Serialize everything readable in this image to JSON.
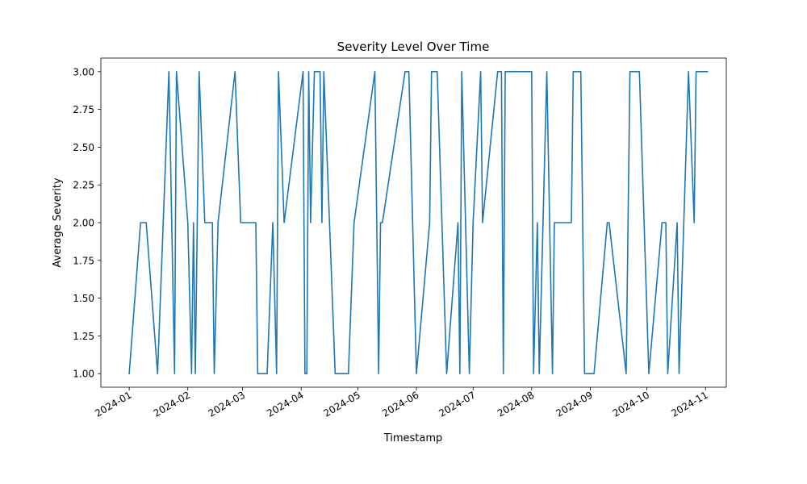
{
  "chart_data": {
    "type": "line",
    "title": "Severity Level Over Time",
    "xlabel": "Timestamp",
    "ylabel": "Average Severity",
    "ylim": [
      0.91,
      3.09
    ],
    "xlim": [
      "2023-12-17",
      "2024-11-12"
    ],
    "x_ticks": [
      "2024-01",
      "2024-02",
      "2024-03",
      "2024-04",
      "2024-05",
      "2024-06",
      "2024-07",
      "2024-08",
      "2024-09",
      "2024-10",
      "2024-11"
    ],
    "y_ticks": [
      "1.00",
      "1.25",
      "1.50",
      "1.75",
      "2.00",
      "2.25",
      "2.50",
      "2.75",
      "3.00"
    ],
    "grid": false,
    "series": [
      {
        "color": "#1f77b4",
        "points": [
          [
            "2024-01-01",
            1
          ],
          [
            "2024-01-07",
            2
          ],
          [
            "2024-01-10",
            2
          ],
          [
            "2024-01-16",
            1
          ],
          [
            "2024-01-22",
            3
          ],
          [
            "2024-01-25",
            1
          ],
          [
            "2024-01-26",
            3
          ],
          [
            "2024-02-01",
            2
          ],
          [
            "2024-02-03",
            1
          ],
          [
            "2024-02-04",
            2
          ],
          [
            "2024-02-05",
            1
          ],
          [
            "2024-02-07",
            3
          ],
          [
            "2024-02-10",
            2
          ],
          [
            "2024-02-14",
            2
          ],
          [
            "2024-02-15",
            1
          ],
          [
            "2024-02-17",
            2
          ],
          [
            "2024-02-26",
            3
          ],
          [
            "2024-02-29",
            2
          ],
          [
            "2024-03-08",
            2
          ],
          [
            "2024-03-09",
            1
          ],
          [
            "2024-03-14",
            1
          ],
          [
            "2024-03-17",
            2
          ],
          [
            "2024-03-19",
            1
          ],
          [
            "2024-03-20",
            3
          ],
          [
            "2024-03-23",
            2
          ],
          [
            "2024-04-02",
            3
          ],
          [
            "2024-04-03",
            1
          ],
          [
            "2024-04-04",
            1
          ],
          [
            "2024-04-05",
            3
          ],
          [
            "2024-04-06",
            2
          ],
          [
            "2024-04-08",
            3
          ],
          [
            "2024-04-11",
            3
          ],
          [
            "2024-04-12",
            2
          ],
          [
            "2024-04-13",
            3
          ],
          [
            "2024-04-19",
            1
          ],
          [
            "2024-04-26",
            1
          ],
          [
            "2024-04-29",
            2
          ],
          [
            "2024-05-10",
            3
          ],
          [
            "2024-05-12",
            1
          ],
          [
            "2024-05-13",
            2
          ],
          [
            "2024-05-14",
            2
          ],
          [
            "2024-05-26",
            3
          ],
          [
            "2024-05-28",
            3
          ],
          [
            "2024-06-01",
            1
          ],
          [
            "2024-06-08",
            2
          ],
          [
            "2024-06-09",
            3
          ],
          [
            "2024-06-12",
            3
          ],
          [
            "2024-06-17",
            1
          ],
          [
            "2024-06-23",
            2
          ],
          [
            "2024-06-24",
            1
          ],
          [
            "2024-06-25",
            3
          ],
          [
            "2024-06-29",
            1
          ],
          [
            "2024-07-01",
            2
          ],
          [
            "2024-07-05",
            3
          ],
          [
            "2024-07-06",
            2
          ],
          [
            "2024-07-14",
            3
          ],
          [
            "2024-07-16",
            3
          ],
          [
            "2024-07-17",
            1
          ],
          [
            "2024-07-18",
            3
          ],
          [
            "2024-08-01",
            3
          ],
          [
            "2024-08-02",
            1
          ],
          [
            "2024-08-04",
            2
          ],
          [
            "2024-08-05",
            1
          ],
          [
            "2024-08-09",
            3
          ],
          [
            "2024-08-12",
            1
          ],
          [
            "2024-08-13",
            2
          ],
          [
            "2024-08-22",
            2
          ],
          [
            "2024-08-23",
            3
          ],
          [
            "2024-08-27",
            3
          ],
          [
            "2024-08-29",
            1
          ],
          [
            "2024-09-03",
            1
          ],
          [
            "2024-09-10",
            2
          ],
          [
            "2024-09-11",
            2
          ],
          [
            "2024-09-20",
            1
          ],
          [
            "2024-09-22",
            3
          ],
          [
            "2024-09-27",
            3
          ],
          [
            "2024-10-02",
            1
          ],
          [
            "2024-10-09",
            2
          ],
          [
            "2024-10-11",
            2
          ],
          [
            "2024-10-12",
            1
          ],
          [
            "2024-10-17",
            2
          ],
          [
            "2024-10-18",
            1
          ],
          [
            "2024-10-23",
            3
          ],
          [
            "2024-10-26",
            2
          ],
          [
            "2024-10-27",
            3
          ],
          [
            "2024-11-02",
            3
          ]
        ]
      }
    ]
  }
}
